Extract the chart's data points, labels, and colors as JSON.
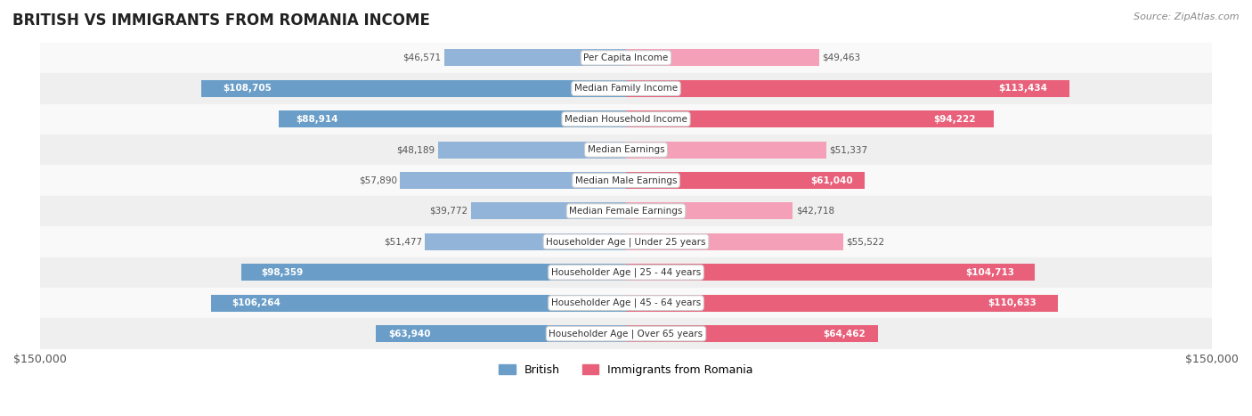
{
  "title": "BRITISH VS IMMIGRANTS FROM ROMANIA INCOME",
  "source": "Source: ZipAtlas.com",
  "categories": [
    "Per Capita Income",
    "Median Family Income",
    "Median Household Income",
    "Median Earnings",
    "Median Male Earnings",
    "Median Female Earnings",
    "Householder Age | Under 25 years",
    "Householder Age | 25 - 44 years",
    "Householder Age | 45 - 64 years",
    "Householder Age | Over 65 years"
  ],
  "british_values": [
    46571,
    108705,
    88914,
    48189,
    57890,
    39772,
    51477,
    98359,
    106264,
    63940
  ],
  "romania_values": [
    49463,
    113434,
    94222,
    51337,
    61040,
    42718,
    55522,
    104713,
    110633,
    64462
  ],
  "british_labels": [
    "$46,571",
    "$108,705",
    "$88,914",
    "$48,189",
    "$57,890",
    "$39,772",
    "$51,477",
    "$98,359",
    "$106,264",
    "$63,940"
  ],
  "romania_labels": [
    "$49,463",
    "$113,434",
    "$94,222",
    "$51,337",
    "$61,040",
    "$42,718",
    "$55,522",
    "$104,713",
    "$110,633",
    "$64,462"
  ],
  "max_value": 150000,
  "british_color": "#92b4d8",
  "british_color_dark": "#6a9ec8",
  "romania_color": "#f4a0b8",
  "romania_color_dark": "#e8607a",
  "bar_height": 0.55,
  "bg_color": "#f5f5f5",
  "row_bg_light": "#f9f9f9",
  "row_bg_dark": "#efefef",
  "threshold_for_inside_label": 60000,
  "legend_british": "British",
  "legend_romania": "Immigrants from Romania"
}
